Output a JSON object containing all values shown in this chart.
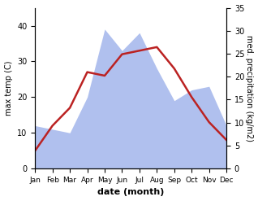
{
  "months": [
    "Jan",
    "Feb",
    "Mar",
    "Apr",
    "May",
    "Jun",
    "Jul",
    "Aug",
    "Sep",
    "Oct",
    "Nov",
    "Dec"
  ],
  "max_temp": [
    5,
    12,
    17,
    27,
    26,
    32,
    33,
    34,
    28,
    20,
    13,
    8
  ],
  "precipitation": [
    12,
    11,
    10,
    20,
    39,
    33,
    38,
    28,
    19,
    22,
    23,
    12
  ],
  "temp_color": "#bb2222",
  "precip_color_fill": "#b0c0ee",
  "left_ylabel": "max temp (C)",
  "right_ylabel": "med. precipitation (kg/m2)",
  "xlabel": "date (month)",
  "left_ylim": [
    0,
    45
  ],
  "right_ylim": [
    0,
    35
  ],
  "left_yticks": [
    0,
    10,
    20,
    30,
    40
  ],
  "right_yticks": [
    0,
    5,
    10,
    15,
    20,
    25,
    30,
    35
  ],
  "figsize": [
    3.18,
    2.47
  ],
  "dpi": 100
}
